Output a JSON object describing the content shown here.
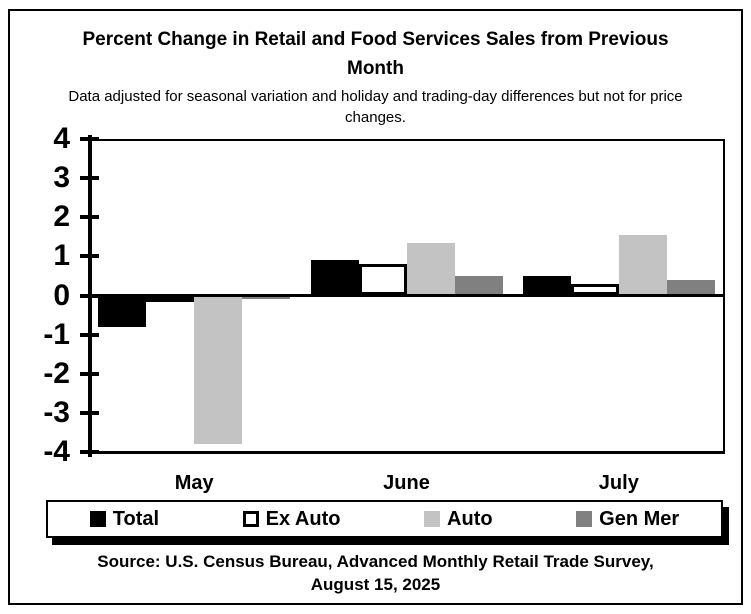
{
  "chart_data": {
    "type": "bar",
    "title": "Percent Change in Retail and Food Services Sales from Previous Month",
    "subtitle": "Data adjusted for seasonal variation and holiday and trading-day differences but not for price changes.",
    "source": "Source: U.S. Census Bureau, Advanced Monthly Retail Trade Survey, August 15, 2025",
    "categories": [
      "May",
      "June",
      "July"
    ],
    "series": [
      {
        "name": "Total",
        "color": "#000000",
        "border": null,
        "values": [
          -0.8,
          0.9,
          0.5
        ]
      },
      {
        "name": "Ex Auto",
        "color": "#ffffff",
        "border": "#000000",
        "values": [
          -0.1,
          0.8,
          0.3
        ]
      },
      {
        "name": "Auto",
        "color": "#c3c3c3",
        "border": null,
        "values": [
          -3.8,
          1.35,
          1.55
        ]
      },
      {
        "name": "Gen Mer",
        "color": "#808080",
        "border": null,
        "values": [
          -0.1,
          0.5,
          0.4
        ]
      }
    ],
    "xlabel": "",
    "ylabel": "",
    "ylim": [
      -4,
      4
    ],
    "yticks": [
      4,
      3,
      2,
      1,
      0,
      -1,
      -2,
      -3,
      -4
    ],
    "grid": false,
    "legend_position": "bottom",
    "axis_color": "#000000",
    "background_color": "#ffffff"
  }
}
